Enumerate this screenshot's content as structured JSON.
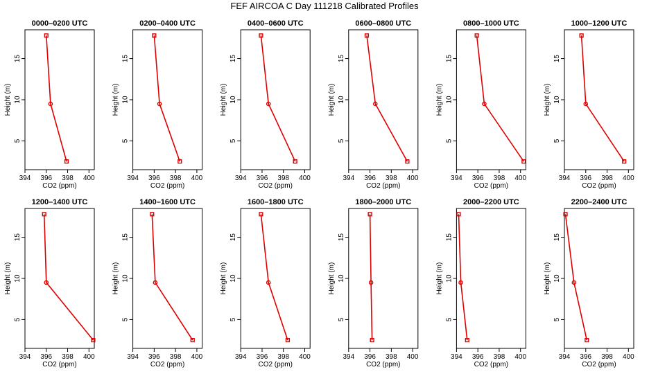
{
  "title": "FEF AIRCOA C  Day 111218  Calibrated Profiles",
  "colors": {
    "series": "#dd0000",
    "axes": "#000000"
  },
  "chart_data": [
    {
      "type": "line",
      "title": "0000–0200 UTC",
      "xlabel": "CO2 (ppm)",
      "ylabel": "Height (m)",
      "xlim": [
        394,
        400.5
      ],
      "ylim": [
        1.5,
        18.5
      ],
      "xticks": [
        "394",
        "396",
        "398",
        "400"
      ],
      "yticks": [
        "5",
        "10",
        "15"
      ],
      "points": [
        {
          "x": 396.0,
          "y": 17.8
        },
        {
          "x": 396.4,
          "y": 9.5
        },
        {
          "x": 397.9,
          "y": 2.5
        }
      ]
    },
    {
      "type": "line",
      "title": "0200–0400 UTC",
      "xlabel": "CO2 (ppm)",
      "ylabel": "Height (m)",
      "xlim": [
        394,
        400.5
      ],
      "ylim": [
        1.5,
        18.5
      ],
      "xticks": [
        "394",
        "396",
        "398",
        "400"
      ],
      "yticks": [
        "5",
        "10",
        "15"
      ],
      "points": [
        {
          "x": 396.0,
          "y": 17.8
        },
        {
          "x": 396.5,
          "y": 9.5
        },
        {
          "x": 398.4,
          "y": 2.5
        }
      ]
    },
    {
      "type": "line",
      "title": "0400–0600 UTC",
      "xlabel": "CO2 (ppm)",
      "ylabel": "Height (m)",
      "xlim": [
        394,
        400.5
      ],
      "ylim": [
        1.5,
        18.5
      ],
      "xticks": [
        "394",
        "396",
        "398",
        "400"
      ],
      "yticks": [
        "5",
        "10",
        "15"
      ],
      "points": [
        {
          "x": 395.9,
          "y": 17.8
        },
        {
          "x": 396.6,
          "y": 9.5
        },
        {
          "x": 399.1,
          "y": 2.5
        }
      ]
    },
    {
      "type": "line",
      "title": "0600–0800 UTC",
      "xlabel": "CO2 (ppm)",
      "ylabel": "Height (m)",
      "xlim": [
        394,
        400.5
      ],
      "ylim": [
        1.5,
        18.5
      ],
      "xticks": [
        "394",
        "396",
        "398",
        "400"
      ],
      "yticks": [
        "5",
        "10",
        "15"
      ],
      "points": [
        {
          "x": 395.7,
          "y": 17.8
        },
        {
          "x": 396.5,
          "y": 9.5
        },
        {
          "x": 399.5,
          "y": 2.5
        }
      ]
    },
    {
      "type": "line",
      "title": "0800–1000 UTC",
      "xlabel": "CO2 (ppm)",
      "ylabel": "Height (m)",
      "xlim": [
        394,
        400.5
      ],
      "ylim": [
        1.5,
        18.5
      ],
      "xticks": [
        "394",
        "396",
        "398",
        "400"
      ],
      "yticks": [
        "5",
        "10",
        "15"
      ],
      "points": [
        {
          "x": 395.9,
          "y": 17.8
        },
        {
          "x": 396.6,
          "y": 9.5
        },
        {
          "x": 400.3,
          "y": 2.5
        }
      ]
    },
    {
      "type": "line",
      "title": "1000–1200 UTC",
      "xlabel": "CO2 (ppm)",
      "ylabel": "Height (m)",
      "xlim": [
        394,
        400.5
      ],
      "ylim": [
        1.5,
        18.5
      ],
      "xticks": [
        "394",
        "396",
        "398",
        "400"
      ],
      "yticks": [
        "5",
        "10",
        "15"
      ],
      "points": [
        {
          "x": 395.6,
          "y": 17.8
        },
        {
          "x": 396.0,
          "y": 9.5
        },
        {
          "x": 399.6,
          "y": 2.5
        }
      ]
    },
    {
      "type": "line",
      "title": "1200–1400 UTC",
      "xlabel": "CO2 (ppm)",
      "ylabel": "Height (m)",
      "xlim": [
        394,
        400.5
      ],
      "ylim": [
        1.5,
        18.5
      ],
      "xticks": [
        "394",
        "396",
        "398",
        "400"
      ],
      "yticks": [
        "5",
        "10",
        "15"
      ],
      "points": [
        {
          "x": 395.8,
          "y": 17.8
        },
        {
          "x": 396.0,
          "y": 9.5
        },
        {
          "x": 400.4,
          "y": 2.5
        }
      ]
    },
    {
      "type": "line",
      "title": "1400–1600 UTC",
      "xlabel": "CO2 (ppm)",
      "ylabel": "Height (m)",
      "xlim": [
        394,
        400.5
      ],
      "ylim": [
        1.5,
        18.5
      ],
      "xticks": [
        "394",
        "396",
        "398",
        "400"
      ],
      "yticks": [
        "5",
        "10",
        "15"
      ],
      "points": [
        {
          "x": 395.8,
          "y": 17.8
        },
        {
          "x": 396.1,
          "y": 9.5
        },
        {
          "x": 399.6,
          "y": 2.5
        }
      ]
    },
    {
      "type": "line",
      "title": "1600–1800 UTC",
      "xlabel": "CO2 (ppm)",
      "ylabel": "Height (m)",
      "xlim": [
        394,
        400.5
      ],
      "ylim": [
        1.5,
        18.5
      ],
      "xticks": [
        "394",
        "396",
        "398",
        "400"
      ],
      "yticks": [
        "5",
        "10",
        "15"
      ],
      "points": [
        {
          "x": 395.9,
          "y": 17.8
        },
        {
          "x": 396.6,
          "y": 9.5
        },
        {
          "x": 398.4,
          "y": 2.5
        }
      ]
    },
    {
      "type": "line",
      "title": "1800–2000 UTC",
      "xlabel": "CO2 (ppm)",
      "ylabel": "Height (m)",
      "xlim": [
        394,
        400.5
      ],
      "ylim": [
        1.5,
        18.5
      ],
      "xticks": [
        "394",
        "396",
        "398",
        "400"
      ],
      "yticks": [
        "5",
        "10",
        "15"
      ],
      "points": [
        {
          "x": 396.0,
          "y": 17.8
        },
        {
          "x": 396.1,
          "y": 9.5
        },
        {
          "x": 396.2,
          "y": 2.5
        }
      ]
    },
    {
      "type": "line",
      "title": "2000–2200 UTC",
      "xlabel": "CO2 (ppm)",
      "ylabel": "Height (m)",
      "xlim": [
        394,
        400.5
      ],
      "ylim": [
        1.5,
        18.5
      ],
      "xticks": [
        "394",
        "396",
        "398",
        "400"
      ],
      "yticks": [
        "5",
        "10",
        "15"
      ],
      "points": [
        {
          "x": 394.2,
          "y": 17.8
        },
        {
          "x": 394.4,
          "y": 9.5
        },
        {
          "x": 395.0,
          "y": 2.5
        }
      ]
    },
    {
      "type": "line",
      "title": "2200–2400 UTC",
      "xlabel": "CO2 (ppm)",
      "ylabel": "Height (m)",
      "xlim": [
        394,
        400.5
      ],
      "ylim": [
        1.5,
        18.5
      ],
      "xticks": [
        "394",
        "396",
        "398",
        "400"
      ],
      "yticks": [
        "5",
        "10",
        "15"
      ],
      "points": [
        {
          "x": 394.1,
          "y": 17.8
        },
        {
          "x": 394.9,
          "y": 9.5
        },
        {
          "x": 396.1,
          "y": 2.5
        }
      ]
    }
  ]
}
